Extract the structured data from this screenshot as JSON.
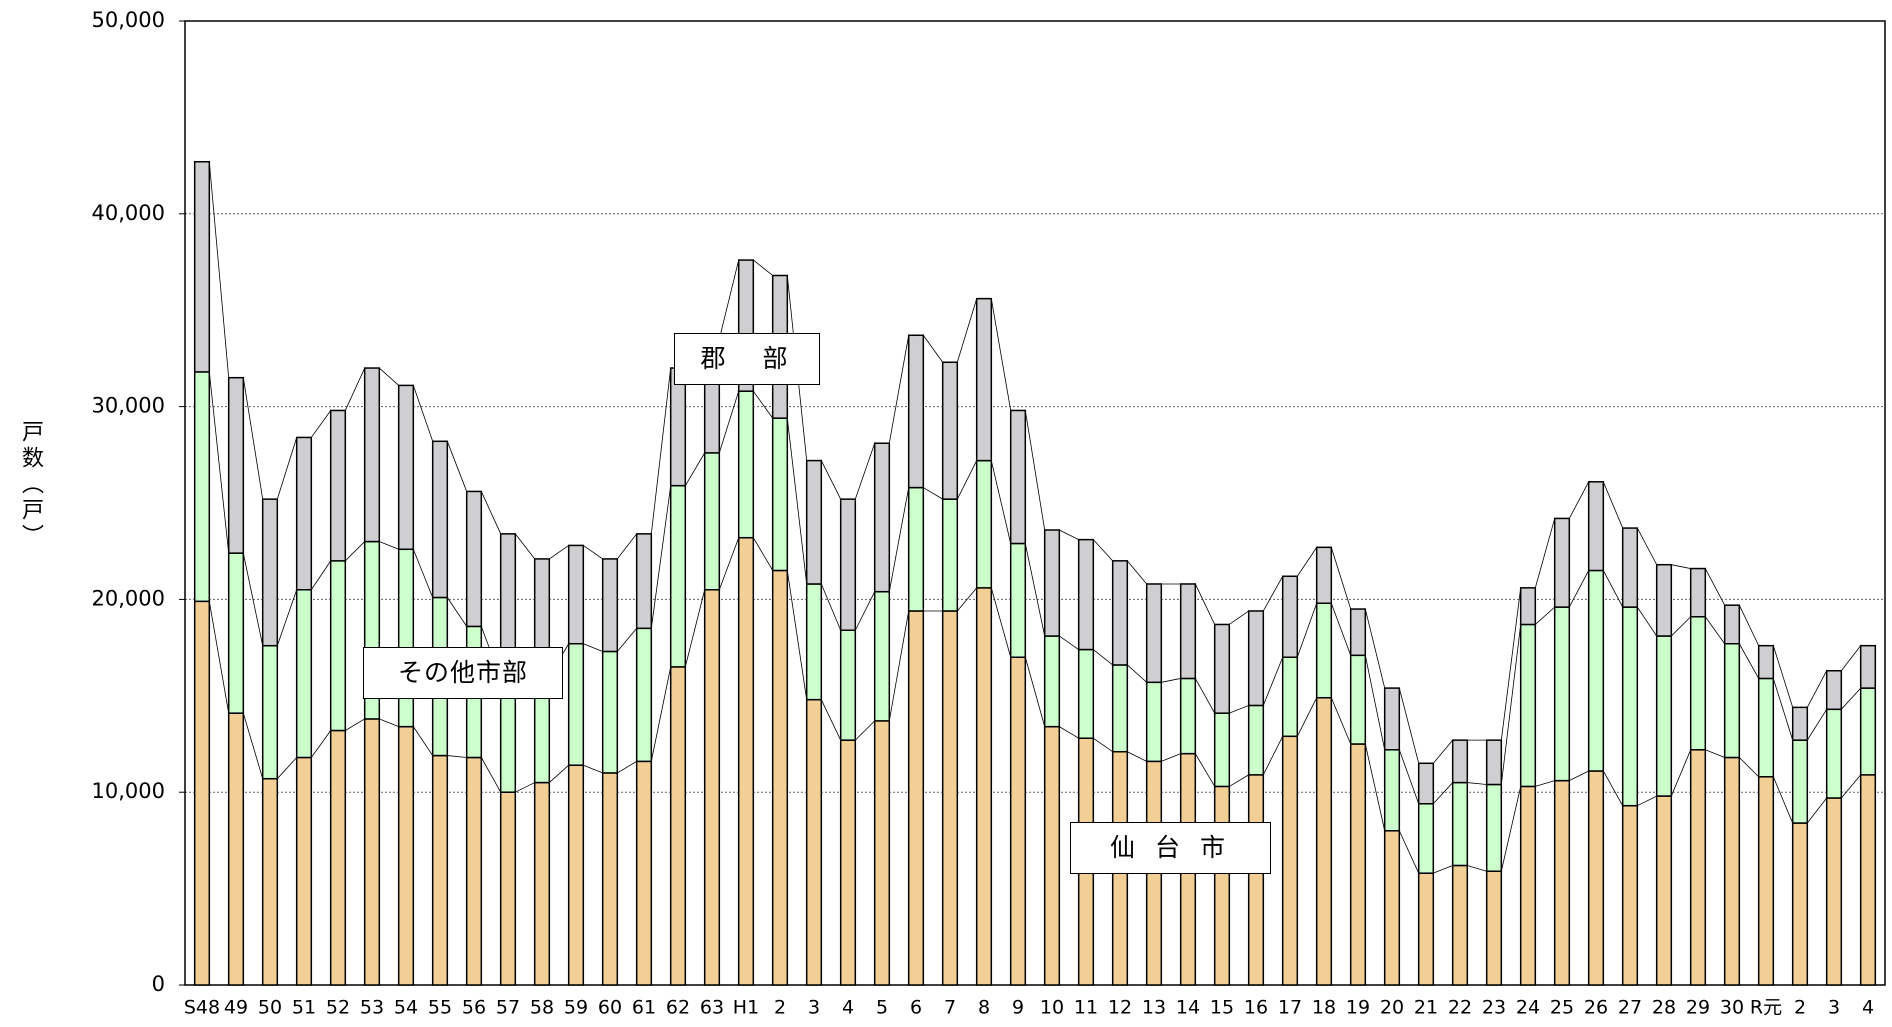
{
  "chart_data": {
    "type": "stacked_bar",
    "y_label": "戸数（戸）",
    "categories": [
      "S48",
      "49",
      "50",
      "51",
      "52",
      "53",
      "54",
      "55",
      "56",
      "57",
      "58",
      "59",
      "60",
      "61",
      "62",
      "63",
      "H1",
      "2",
      "3",
      "4",
      "5",
      "6",
      "7",
      "8",
      "9",
      "10",
      "11",
      "12",
      "13",
      "14",
      "15",
      "16",
      "17",
      "18",
      "19",
      "20",
      "21",
      "22",
      "23",
      "24",
      "25",
      "26",
      "27",
      "28",
      "29",
      "30",
      "R元",
      "2",
      "3",
      "4"
    ],
    "series": [
      {
        "name": "仙 台 市",
        "color": "#f2cf94",
        "values": [
          19900,
          14100,
          10700,
          11800,
          13200,
          13800,
          13400,
          11900,
          11800,
          10000,
          10500,
          11400,
          11000,
          11600,
          16500,
          20500,
          23200,
          21500,
          14800,
          12700,
          13700,
          19400,
          19400,
          20600,
          17000,
          13400,
          12800,
          12100,
          11600,
          12000,
          10300,
          10900,
          12900,
          14900,
          12500,
          8000,
          5800,
          6200,
          5900,
          10300,
          10600,
          11100,
          9300,
          9800,
          12200,
          11800,
          10800,
          8400,
          9700,
          10900
        ]
      },
      {
        "name": "その他市部",
        "color": "#ccffcc",
        "values": [
          11900,
          8300,
          6900,
          8700,
          8800,
          9200,
          9200,
          8200,
          6800,
          5900,
          5500,
          6300,
          6300,
          6900,
          9400,
          7100,
          7600,
          7900,
          6000,
          5700,
          6700,
          6400,
          5800,
          6600,
          5900,
          4700,
          4600,
          4500,
          4100,
          3900,
          3800,
          3600,
          4100,
          4900,
          4600,
          4200,
          3600,
          4300,
          4500,
          8400,
          9000,
          10400,
          10300,
          8300,
          6900,
          5900,
          5100,
          4300,
          4600,
          4500
        ]
      },
      {
        "name": "郡　部",
        "color": "#cfcfd2",
        "values": [
          10900,
          9100,
          7600,
          7900,
          7800,
          9000,
          8500,
          8100,
          7000,
          7500,
          6100,
          5100,
          4800,
          4900,
          6100,
          5900,
          6800,
          7400,
          6400,
          6800,
          7700,
          7900,
          7100,
          8400,
          6900,
          5500,
          5700,
          5400,
          5100,
          4900,
          4600,
          4900,
          4200,
          2900,
          2400,
          3200,
          2100,
          2200,
          2300,
          1900,
          4600,
          4600,
          4100,
          3700,
          2500,
          2000,
          1700,
          1700,
          2000,
          2200
        ]
      }
    ],
    "ylim": [
      0,
      50000
    ],
    "yticks": [
      0,
      {
        "value": 10000,
        "label": "10,000"
      },
      {
        "value": 20000,
        "label": "20,000"
      },
      {
        "value": 30000,
        "label": "30,000"
      },
      {
        "value": 40000,
        "label": "40,000"
      },
      {
        "value": 50000,
        "label": "50,000"
      }
    ],
    "grid": true
  }
}
